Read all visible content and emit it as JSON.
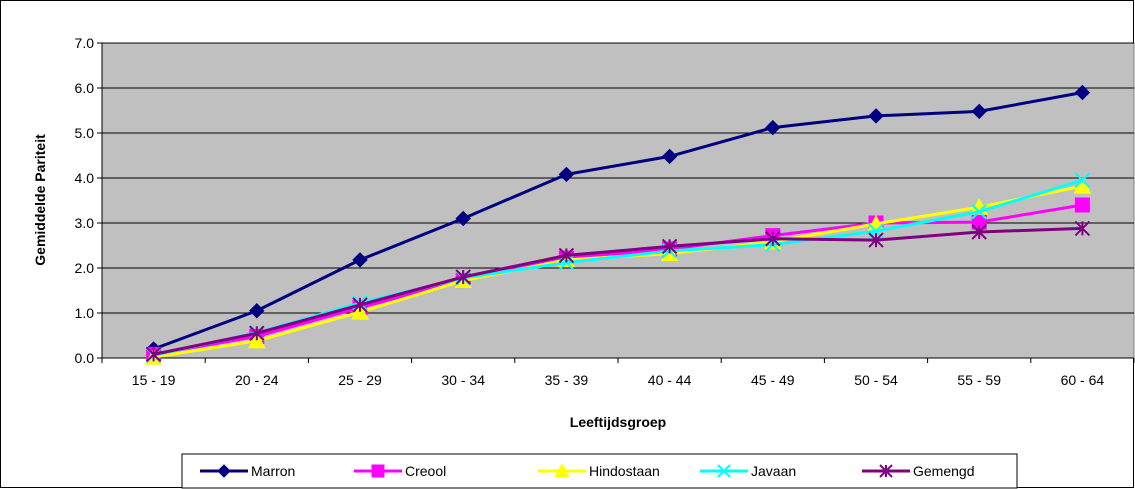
{
  "chart_data": {
    "type": "line",
    "title": "",
    "xlabel": "Leeftijdsgroep",
    "ylabel": "Gemiddelde Pariteit",
    "ylim": [
      0,
      7
    ],
    "yticks": [
      "0.0",
      "1.0",
      "2.0",
      "3.0",
      "4.0",
      "5.0",
      "6.0",
      "7.0"
    ],
    "categories": [
      "15 - 19",
      "20 - 24",
      "25 - 29",
      "30 - 34",
      "35 - 39",
      "40 - 44",
      "45 - 49",
      "50 - 54",
      "55 - 59",
      "60 - 64"
    ],
    "grid": "horizontal",
    "plot_background": "#c0c0c0",
    "legend_position": "bottom",
    "series": [
      {
        "name": "Marron",
        "color": "#000080",
        "marker": "diamond",
        "values": [
          0.2,
          1.05,
          2.18,
          3.1,
          4.08,
          4.48,
          5.12,
          5.38,
          5.48,
          5.9
        ]
      },
      {
        "name": "Creool",
        "color": "#ff00ff",
        "marker": "square",
        "values": [
          0.08,
          0.48,
          1.12,
          1.72,
          2.22,
          2.42,
          2.72,
          3.0,
          3.02,
          3.4
        ]
      },
      {
        "name": "Hindostaan",
        "color": "#ffff00",
        "marker": "triangle",
        "values": [
          0.02,
          0.38,
          1.02,
          1.72,
          2.18,
          2.32,
          2.58,
          2.98,
          3.35,
          3.82
        ]
      },
      {
        "name": "Javaan",
        "color": "#00ffff",
        "marker": "x",
        "values": [
          0.06,
          0.56,
          1.22,
          1.78,
          2.12,
          2.38,
          2.52,
          2.82,
          3.25,
          3.95
        ]
      },
      {
        "name": "Gemengd",
        "color": "#800080",
        "marker": "asterisk",
        "values": [
          0.08,
          0.55,
          1.18,
          1.8,
          2.28,
          2.48,
          2.65,
          2.62,
          2.8,
          2.88
        ]
      }
    ]
  }
}
